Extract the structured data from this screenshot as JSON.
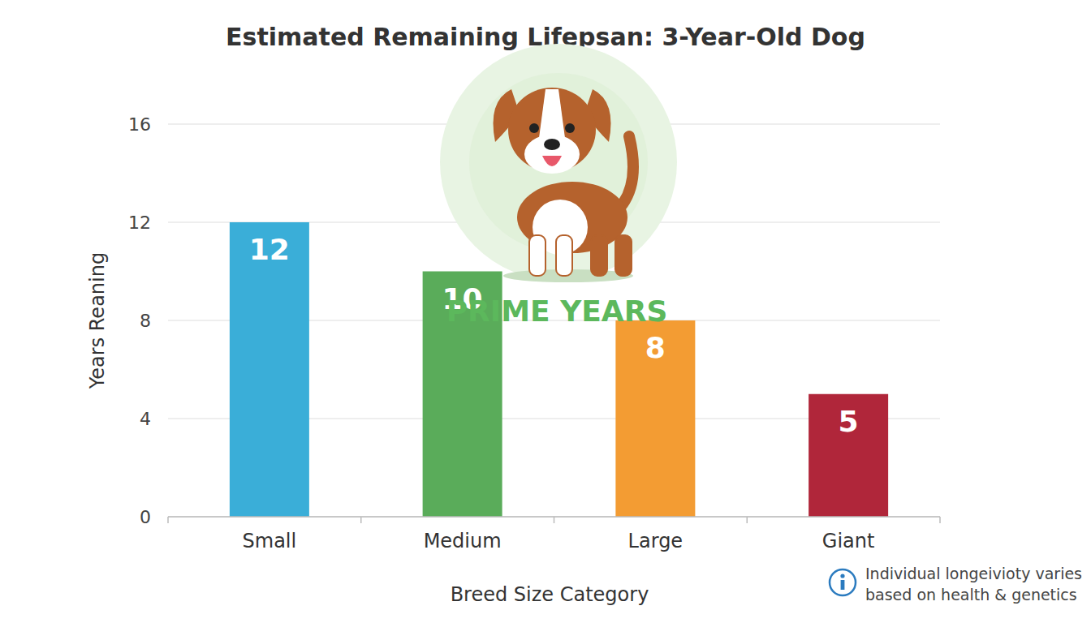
{
  "chart_data": {
    "type": "bar",
    "title": "Estimated Remaining Lifepsan: 3-Year-Old Dog",
    "x_label": "Breed Size Category",
    "y_label": "Years Reaning",
    "categories": [
      "Small",
      "Medium",
      "Large",
      "Giant"
    ],
    "values": [
      12,
      10,
      8,
      5
    ],
    "colors": [
      "#3aaed8",
      "#5aac5a",
      "#f39c33",
      "#b0263a"
    ],
    "ylim": [
      0,
      16
    ],
    "yticks": [
      0,
      4,
      8,
      12,
      16
    ],
    "grid": true,
    "data_labels": true,
    "annotations": [
      "PRIME YEARS",
      "Individual longeivioty varies based on health & genetics"
    ]
  }
}
